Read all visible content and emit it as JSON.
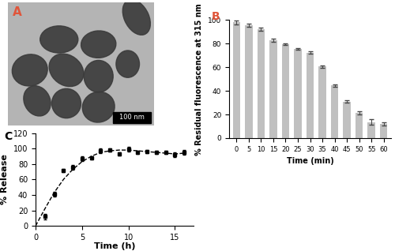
{
  "chart_data": [
    {
      "type": "image",
      "panel_label": "A",
      "scale_bar": "100 nm"
    },
    {
      "type": "bar",
      "panel_label": "B",
      "x_label": "Time (min)",
      "y_label": "% Residual fluorescence at 315 nm",
      "categories": [
        "0",
        "5",
        "10",
        "15",
        "20",
        "25",
        "30",
        "35",
        "40",
        "45",
        "50",
        "55",
        "60"
      ],
      "values": [
        98,
        95.5,
        92,
        83,
        79.5,
        75.5,
        72.5,
        60.5,
        44.5,
        31,
        21.5,
        13.5,
        12
      ],
      "errors": [
        1.5,
        1.2,
        1.3,
        1.3,
        0.8,
        0.8,
        0.8,
        1.0,
        1.2,
        0.8,
        1.2,
        2.5,
        1.2
      ],
      "color": "#c0c0c0",
      "ylim": [
        0,
        100
      ],
      "yticks": [
        0,
        20,
        40,
        60,
        80,
        100
      ]
    },
    {
      "type": "scatter",
      "panel_label": "C",
      "x_label": "Time (h)",
      "y_label": "% Release",
      "series": [
        {
          "type": "scatter",
          "color": "#000000",
          "marker": "square",
          "x": [
            1,
            2,
            3,
            4,
            5,
            6,
            7,
            8,
            9,
            10,
            11,
            12,
            13,
            14,
            15,
            16
          ],
          "values": [
            12,
            41,
            72,
            76,
            87,
            88,
            97,
            98,
            93,
            99,
            95,
            96,
            95,
            95,
            92,
            95
          ],
          "errors": [
            4,
            3,
            2,
            3,
            3,
            2,
            3,
            2,
            2,
            3,
            2,
            2,
            2,
            2,
            3,
            3
          ]
        },
        {
          "type": "line",
          "color": "#000000",
          "line_style": "dashed",
          "x": [
            0,
            1,
            2,
            3,
            4,
            5,
            6,
            7,
            8,
            9,
            10,
            11,
            12,
            13,
            14,
            15,
            16
          ],
          "values": [
            0,
            22,
            43,
            60,
            73,
            83,
            90,
            95,
            97,
            98,
            98,
            97,
            96,
            95,
            94,
            93,
            94
          ]
        }
      ],
      "xlim": [
        0,
        17
      ],
      "xticks": [
        0,
        5,
        10,
        15
      ],
      "ylim": [
        0,
        120
      ],
      "yticks": [
        0,
        20,
        40,
        60,
        80,
        100,
        120
      ]
    }
  ]
}
